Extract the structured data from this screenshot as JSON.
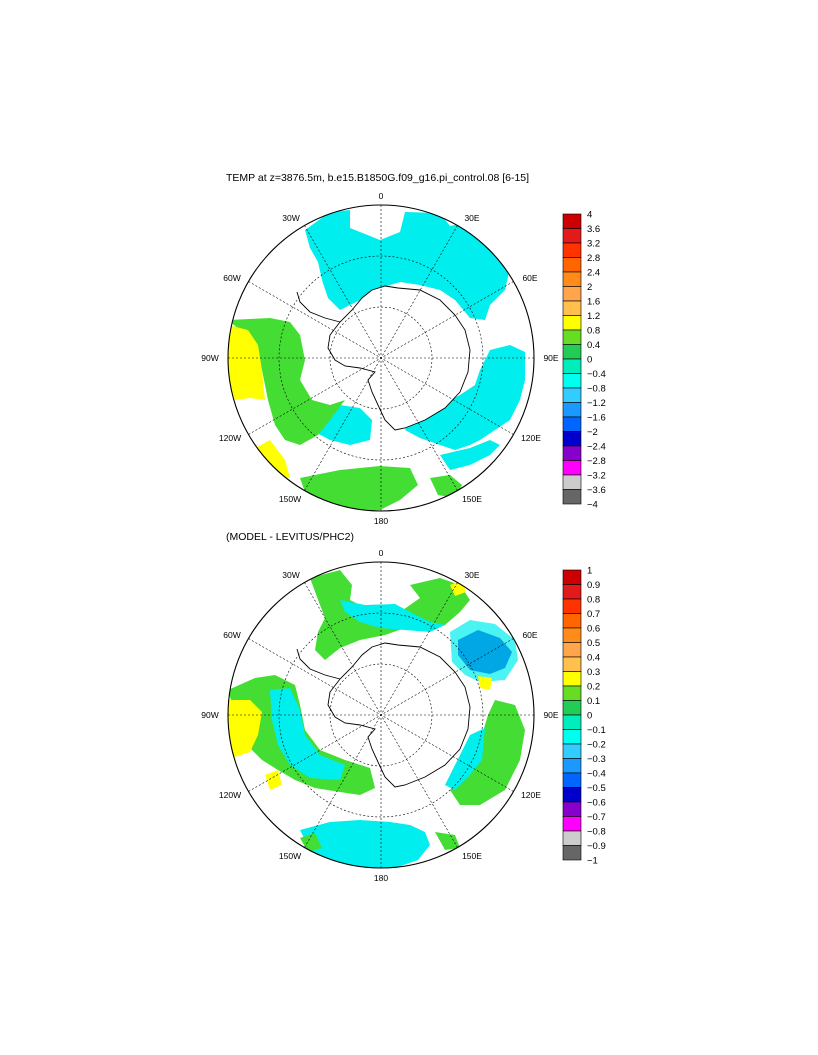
{
  "panels": [
    {
      "title": "TEMP at z=3876.5m, b.e15.B1850G.f09_g16.pi_control.08 [6-15]",
      "lon_labels": {
        "n": "0",
        "ne30": "30E",
        "ne60": "60E",
        "e90": "90E",
        "e120": "120E",
        "e150": "150E",
        "s": "180",
        "w150": "150W",
        "w120": "120W",
        "w90": "90W",
        "w60": "60W",
        "w30": "30W"
      },
      "colorbar": {
        "labels": [
          "4",
          "3.6",
          "3.2",
          "2.8",
          "2.4",
          "2",
          "1.6",
          "1.2",
          "0.8",
          "0.4",
          "0",
          "−0.4",
          "−0.8",
          "−1.2",
          "−1.6",
          "−2",
          "−2.4",
          "−2.8",
          "−3.2",
          "−3.6",
          "−4"
        ],
        "colors": [
          "#cc0000",
          "#e31a1c",
          "#ff3300",
          "#ff6600",
          "#ff8c1a",
          "#ffa64d",
          "#ffc04d",
          "#ffff00",
          "#66dd22",
          "#22cc55",
          "#00eebb",
          "#00ffee",
          "#33ccff",
          "#1a99ff",
          "#0066ff",
          "#0000cc",
          "#8800cc",
          "#ff00ff",
          "#cccccc",
          "#666666"
        ]
      }
    },
    {
      "title": "(MODEL - LEVITUS/PHC2)",
      "lon_labels": {
        "n": "0",
        "ne30": "30E",
        "ne60": "60E",
        "e90": "90E",
        "e120": "120E",
        "e150": "150E",
        "s": "180",
        "w150": "150W",
        "w120": "120W",
        "w90": "90W",
        "w60": "60W",
        "w30": "30W"
      },
      "colorbar": {
        "labels": [
          "1",
          "0.9",
          "0.8",
          "0.7",
          "0.6",
          "0.5",
          "0.4",
          "0.3",
          "0.2",
          "0.1",
          "0",
          "−0.1",
          "−0.2",
          "−0.3",
          "−0.4",
          "−0.5",
          "−0.6",
          "−0.7",
          "−0.8",
          "−0.9",
          "−1"
        ],
        "colors": [
          "#cc0000",
          "#e31a1c",
          "#ff3300",
          "#ff6600",
          "#ff8c1a",
          "#ffa64d",
          "#ffc04d",
          "#ffff00",
          "#66dd22",
          "#22cc55",
          "#00eebb",
          "#00ffee",
          "#33ccff",
          "#1a99ff",
          "#0066ff",
          "#0000cc",
          "#8800cc",
          "#ff00ff",
          "#cccccc",
          "#666666"
        ]
      }
    }
  ]
}
